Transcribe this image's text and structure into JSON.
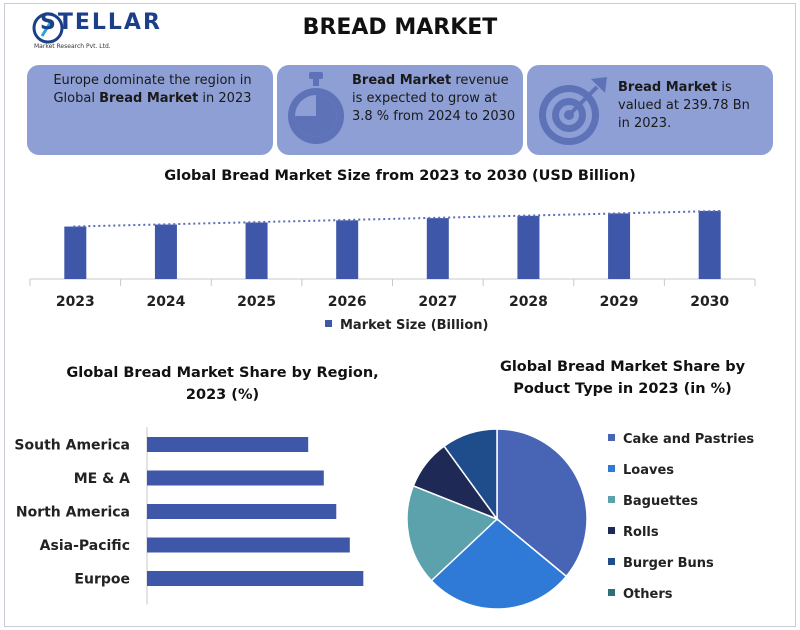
{
  "header": {
    "logo_text": "STELLAR",
    "logo_subtext": "Market Research Pvt. Ltd.",
    "title": "BREAD MARKET"
  },
  "cards": {
    "region": {
      "pre": "Europe dominate the region in Global ",
      "bold": "Bread Market",
      "post": " in 2023"
    },
    "growth": {
      "bold": "Bread Market",
      "post": " revenue is expected to grow at 3.8 % from 2024 to 2030"
    },
    "value": {
      "bold": "Bread Market",
      "post": " is valued at 239.78 Bn in 2023."
    }
  },
  "colors": {
    "card_bg": "#8e9fd5",
    "bar": "#3f57a8",
    "trend": "#5a6fb8"
  },
  "chart_data": [
    {
      "type": "bar",
      "title": "Global Bread Market Size from 2023 to 2030 (USD Billion)",
      "categories": [
        "2023",
        "2024",
        "2025",
        "2026",
        "2027",
        "2028",
        "2029",
        "2030"
      ],
      "series": [
        {
          "name": "Market Size (Billion)",
          "values": [
            239.78,
            248.9,
            258.3,
            268.1,
            278.3,
            288.9,
            299.9,
            311.3
          ]
        }
      ],
      "trendline": true,
      "ylim": [
        0,
        320
      ],
      "legend": "bottom"
    },
    {
      "type": "bar",
      "orientation": "horizontal",
      "title": "Global Bread Market Share by Region, 2023 (%)",
      "categories": [
        "South America",
        "ME & A",
        "North America",
        "Asia-Pacific",
        "Eurpoe"
      ],
      "values": [
        15.5,
        17,
        18.2,
        19.5,
        20.8
      ],
      "xlim": [
        0,
        25
      ]
    },
    {
      "type": "pie",
      "title": "Global Bread Market Share by Poduct Type in 2023 (in %)",
      "labels": [
        "Cake and Pastries",
        "Loaves",
        "Baguettes",
        "Rolls",
        "Burger Buns",
        "Others"
      ],
      "values": [
        36,
        27,
        18,
        9,
        10,
        0
      ],
      "colors": [
        "#4864b5",
        "#2e7ad6",
        "#5ba2ad",
        "#1e2a55",
        "#1f4d8c",
        "#2f6e7a"
      ],
      "legend": "right"
    }
  ]
}
